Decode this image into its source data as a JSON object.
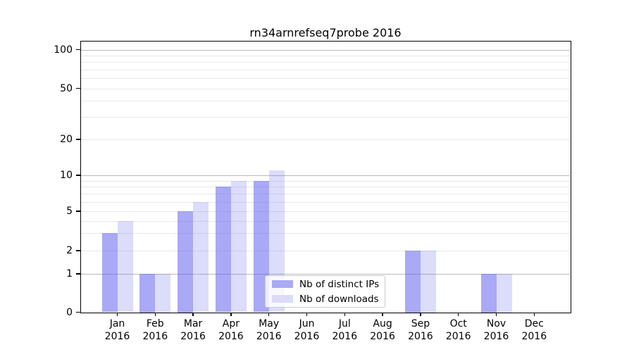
{
  "chart_data": {
    "type": "bar",
    "title": "rn34arnrefseq7probe 2016",
    "year_label": "2016",
    "categories": [
      "Jan",
      "Feb",
      "Mar",
      "Apr",
      "May",
      "Jun",
      "Jul",
      "Aug",
      "Sep",
      "Oct",
      "Nov",
      "Dec"
    ],
    "series": [
      {
        "name": "Nb of distinct IPs",
        "color": "#aaaaf5",
        "fill": "rgba(90,90,235,0.52)",
        "values": [
          3,
          1,
          5,
          8,
          9,
          0,
          0,
          0,
          2,
          0,
          1,
          0
        ]
      },
      {
        "name": "Nb of downloads",
        "color": "#dcdcf8",
        "fill": "rgba(90,90,235,0.21)",
        "values": [
          4,
          1,
          6,
          9,
          11,
          0,
          0,
          0,
          2,
          0,
          1,
          0
        ]
      }
    ],
    "xlabel": "",
    "ylabel": "",
    "yscale": "symlog",
    "ylim": [
      0,
      115
    ],
    "yticks": [
      0,
      1,
      2,
      5,
      10,
      20,
      50,
      100
    ],
    "grid": {
      "major_values": [
        1,
        10,
        100
      ],
      "minor_values": [
        2,
        3,
        4,
        5,
        6,
        7,
        8,
        9,
        20,
        30,
        40,
        50,
        60,
        70,
        80,
        90
      ],
      "major_color": "#bbbbbb",
      "minor_color": "#e8e8e8"
    },
    "legend_position": "lower center (inside plot)"
  }
}
